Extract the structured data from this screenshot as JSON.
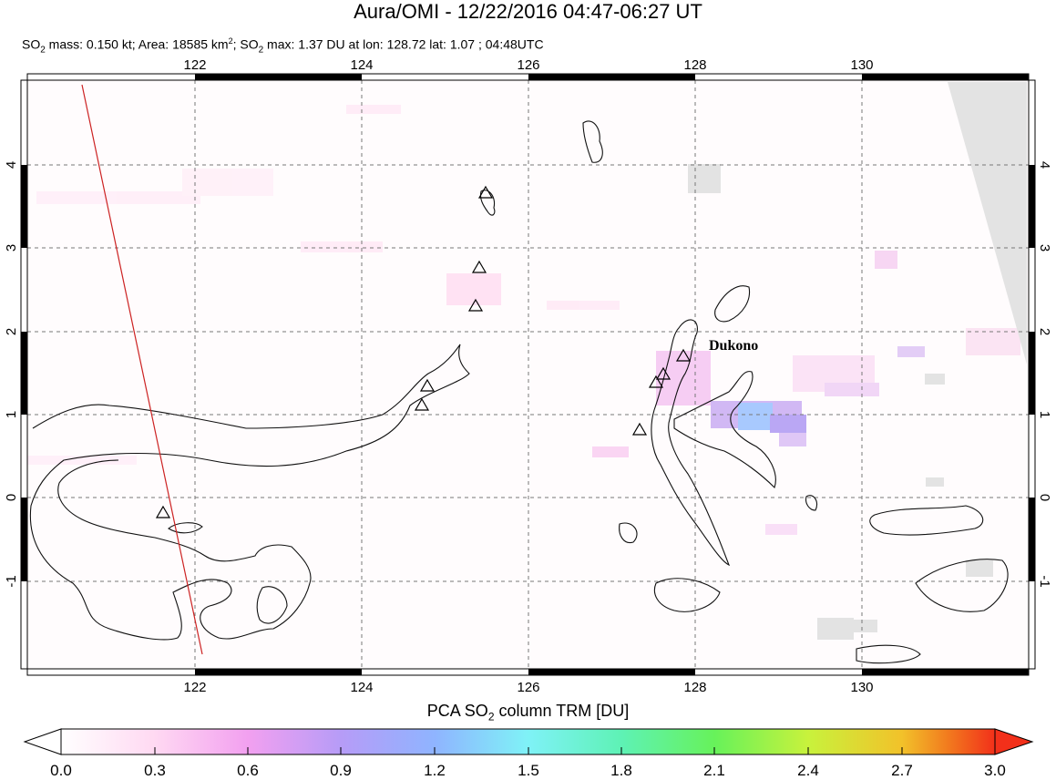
{
  "title": "Aura/OMI - 12/22/2016 04:47-06:27 UT",
  "subtitle": {
    "mass_prefix": "SO",
    "mass_sub": "2",
    "mass_text": " mass: 0.150 kt; Area: 18585 km",
    "area_sup": "2",
    "max_prefix": "; SO",
    "max_sub": "2",
    "max_text": " max: 1.37 DU at lon: 128.72 lat: 1.07 ; 04:48UTC"
  },
  "map": {
    "lon_ticks": [
      "122",
      "124",
      "126",
      "128",
      "130"
    ],
    "lat_ticks": [
      "4",
      "3",
      "2",
      "1",
      "0",
      "-1"
    ],
    "volcano_label": "Dukono",
    "volcano_label_font": "serif bold"
  },
  "colorbar": {
    "title_prefix": "PCA SO",
    "title_sub": "2",
    "title_suffix": " column TRM [DU]",
    "labels": [
      "0.0",
      "0.3",
      "0.6",
      "0.9",
      "1.2",
      "1.5",
      "1.8",
      "2.1",
      "2.4",
      "2.7",
      "3.0"
    ],
    "colors": [
      "#ffffff",
      "#ffd9f2",
      "#f2a0f0",
      "#b69cf7",
      "#8fb4ff",
      "#7ff2f7",
      "#5ef2b5",
      "#67f25a",
      "#c8f23c",
      "#f2c22a",
      "#f27a1e",
      "#f2301a"
    ]
  }
}
